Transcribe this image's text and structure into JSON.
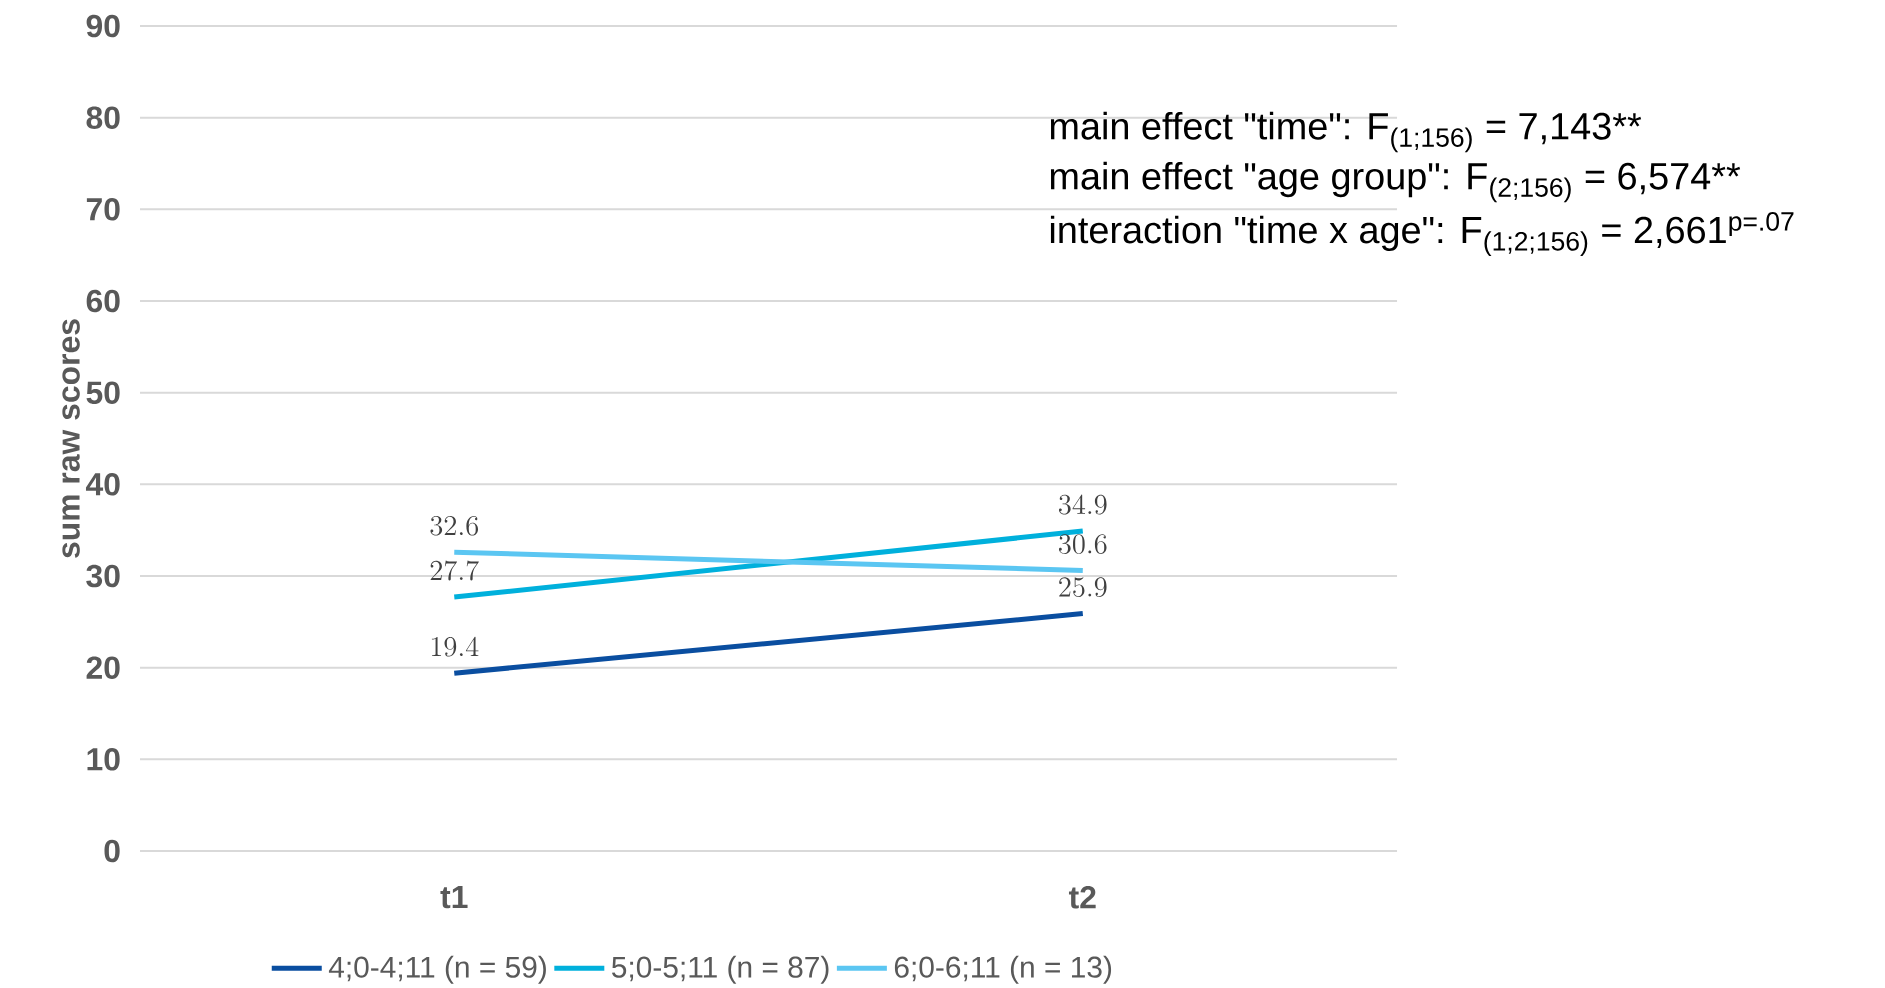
{
  "chart_data": {
    "type": "line",
    "ylabel": "sum raw scores",
    "categories": [
      "t1",
      "t2"
    ],
    "series": [
      {
        "name": "4;0-4;11 (n = 59)",
        "color": "#0a4ea0",
        "values": [
          19.4,
          25.9
        ]
      },
      {
        "name": "5;0-5;11 (n = 87)",
        "color": "#00b0dc",
        "values": [
          27.7,
          34.9
        ]
      },
      {
        "name": "6;0-6;11 (n = 13)",
        "color": "#5bc6f2",
        "values": [
          32.6,
          30.6
        ]
      }
    ],
    "ylim": [
      0,
      90
    ],
    "yticks": [
      0,
      10,
      20,
      30,
      40,
      50,
      60,
      70,
      80,
      90
    ],
    "grid": "y",
    "legend": "bottom",
    "data_labels": true,
    "annotations": [
      "main effect \"time\": F$_{(1;156)}$ = 7,143**",
      "main effect \"age group\": F$_{(2;156)}$ = 6,574**",
      "interaction \"time x age\": F$_{(1;2;156)}$ = 2,661$^{p=.07}$"
    ]
  }
}
